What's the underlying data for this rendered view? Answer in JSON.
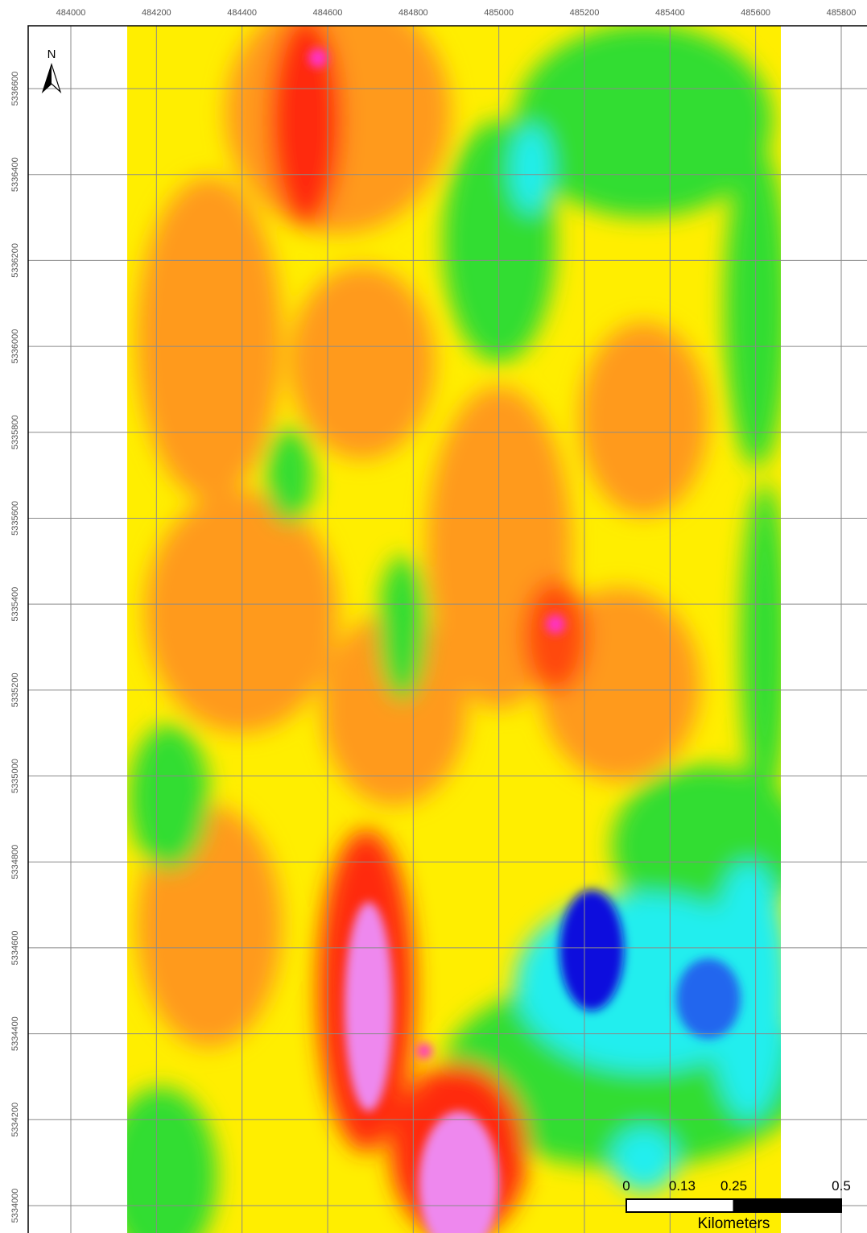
{
  "map": {
    "xticks": [
      484000,
      484200,
      484400,
      484600,
      484800,
      485000,
      485200,
      485400,
      485600,
      485800
    ],
    "yticks": [
      5334000,
      5334200,
      5334400,
      5334600,
      5334800,
      5335000,
      5335200,
      5335400,
      5335600,
      5335800,
      5336000,
      5336200,
      5336400,
      5336600
    ],
    "north": "N",
    "scale": {
      "values": [
        0,
        0.13,
        0.25,
        0.5
      ],
      "unit": "Kilometers"
    }
  }
}
